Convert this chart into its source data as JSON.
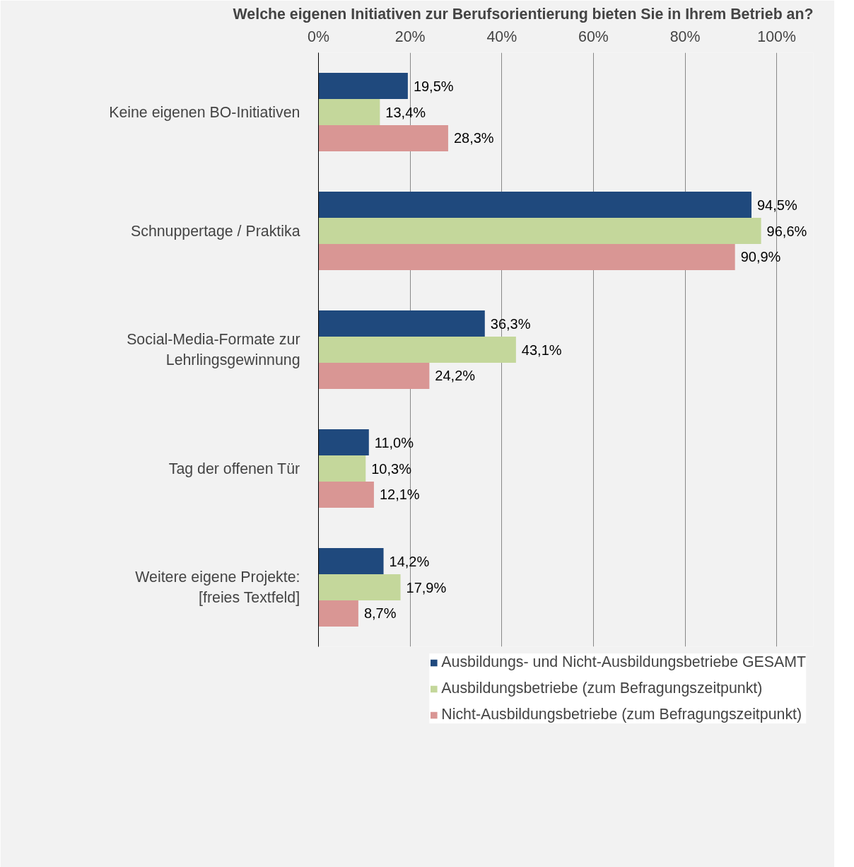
{
  "chart_data": {
    "type": "bar",
    "orientation": "horizontal",
    "title": "Welche eigenen Initiativen zur Berufsorientierung bieten Sie in Ihrem Betrieb an?",
    "categories": [
      "Keine eigenen BO-Initiativen",
      "Schnuppertage / Praktika",
      "Social-Media-Formate zur Lehrlingsgewinnung",
      "Tag der offenen Tür",
      "Weitere eigene Projekte: [freies Textfeld]"
    ],
    "series": [
      {
        "name": "Ausbildungs- und Nicht-Ausbildungsbetriebe GESAMT",
        "color": "#1f497d",
        "values": [
          19.5,
          94.5,
          36.3,
          11.0,
          14.2
        ],
        "value_labels": [
          "19,5%",
          "94,5%",
          "36,3%",
          "11,0%",
          "14,2%"
        ]
      },
      {
        "name": "Ausbildungsbetriebe (zum Befragungszeitpunkt)",
        "color": "#c4d79b",
        "values": [
          13.4,
          96.6,
          43.1,
          10.3,
          17.9
        ],
        "value_labels": [
          "13,4%",
          "96,6%",
          "43,1%",
          "10,3%",
          "17,9%"
        ]
      },
      {
        "name": "Nicht-Ausbildungsbetriebe (zum Befragungszeitpunkt)",
        "color": "#d99694",
        "values": [
          28.3,
          90.9,
          24.2,
          12.1,
          8.7
        ],
        "value_labels": [
          "28,3%",
          "90,9%",
          "24,2%",
          "12,1%",
          "8,7%"
        ]
      }
    ],
    "xlim": [
      0,
      108
    ],
    "xticks": [
      {
        "value": 0,
        "label": "0%"
      },
      {
        "value": 20,
        "label": "20%"
      },
      {
        "value": 40,
        "label": "40%"
      },
      {
        "value": 60,
        "label": "60%"
      },
      {
        "value": 80,
        "label": "80%"
      },
      {
        "value": 100,
        "label": "100%"
      }
    ],
    "grid": "x",
    "legend": "bottom"
  }
}
